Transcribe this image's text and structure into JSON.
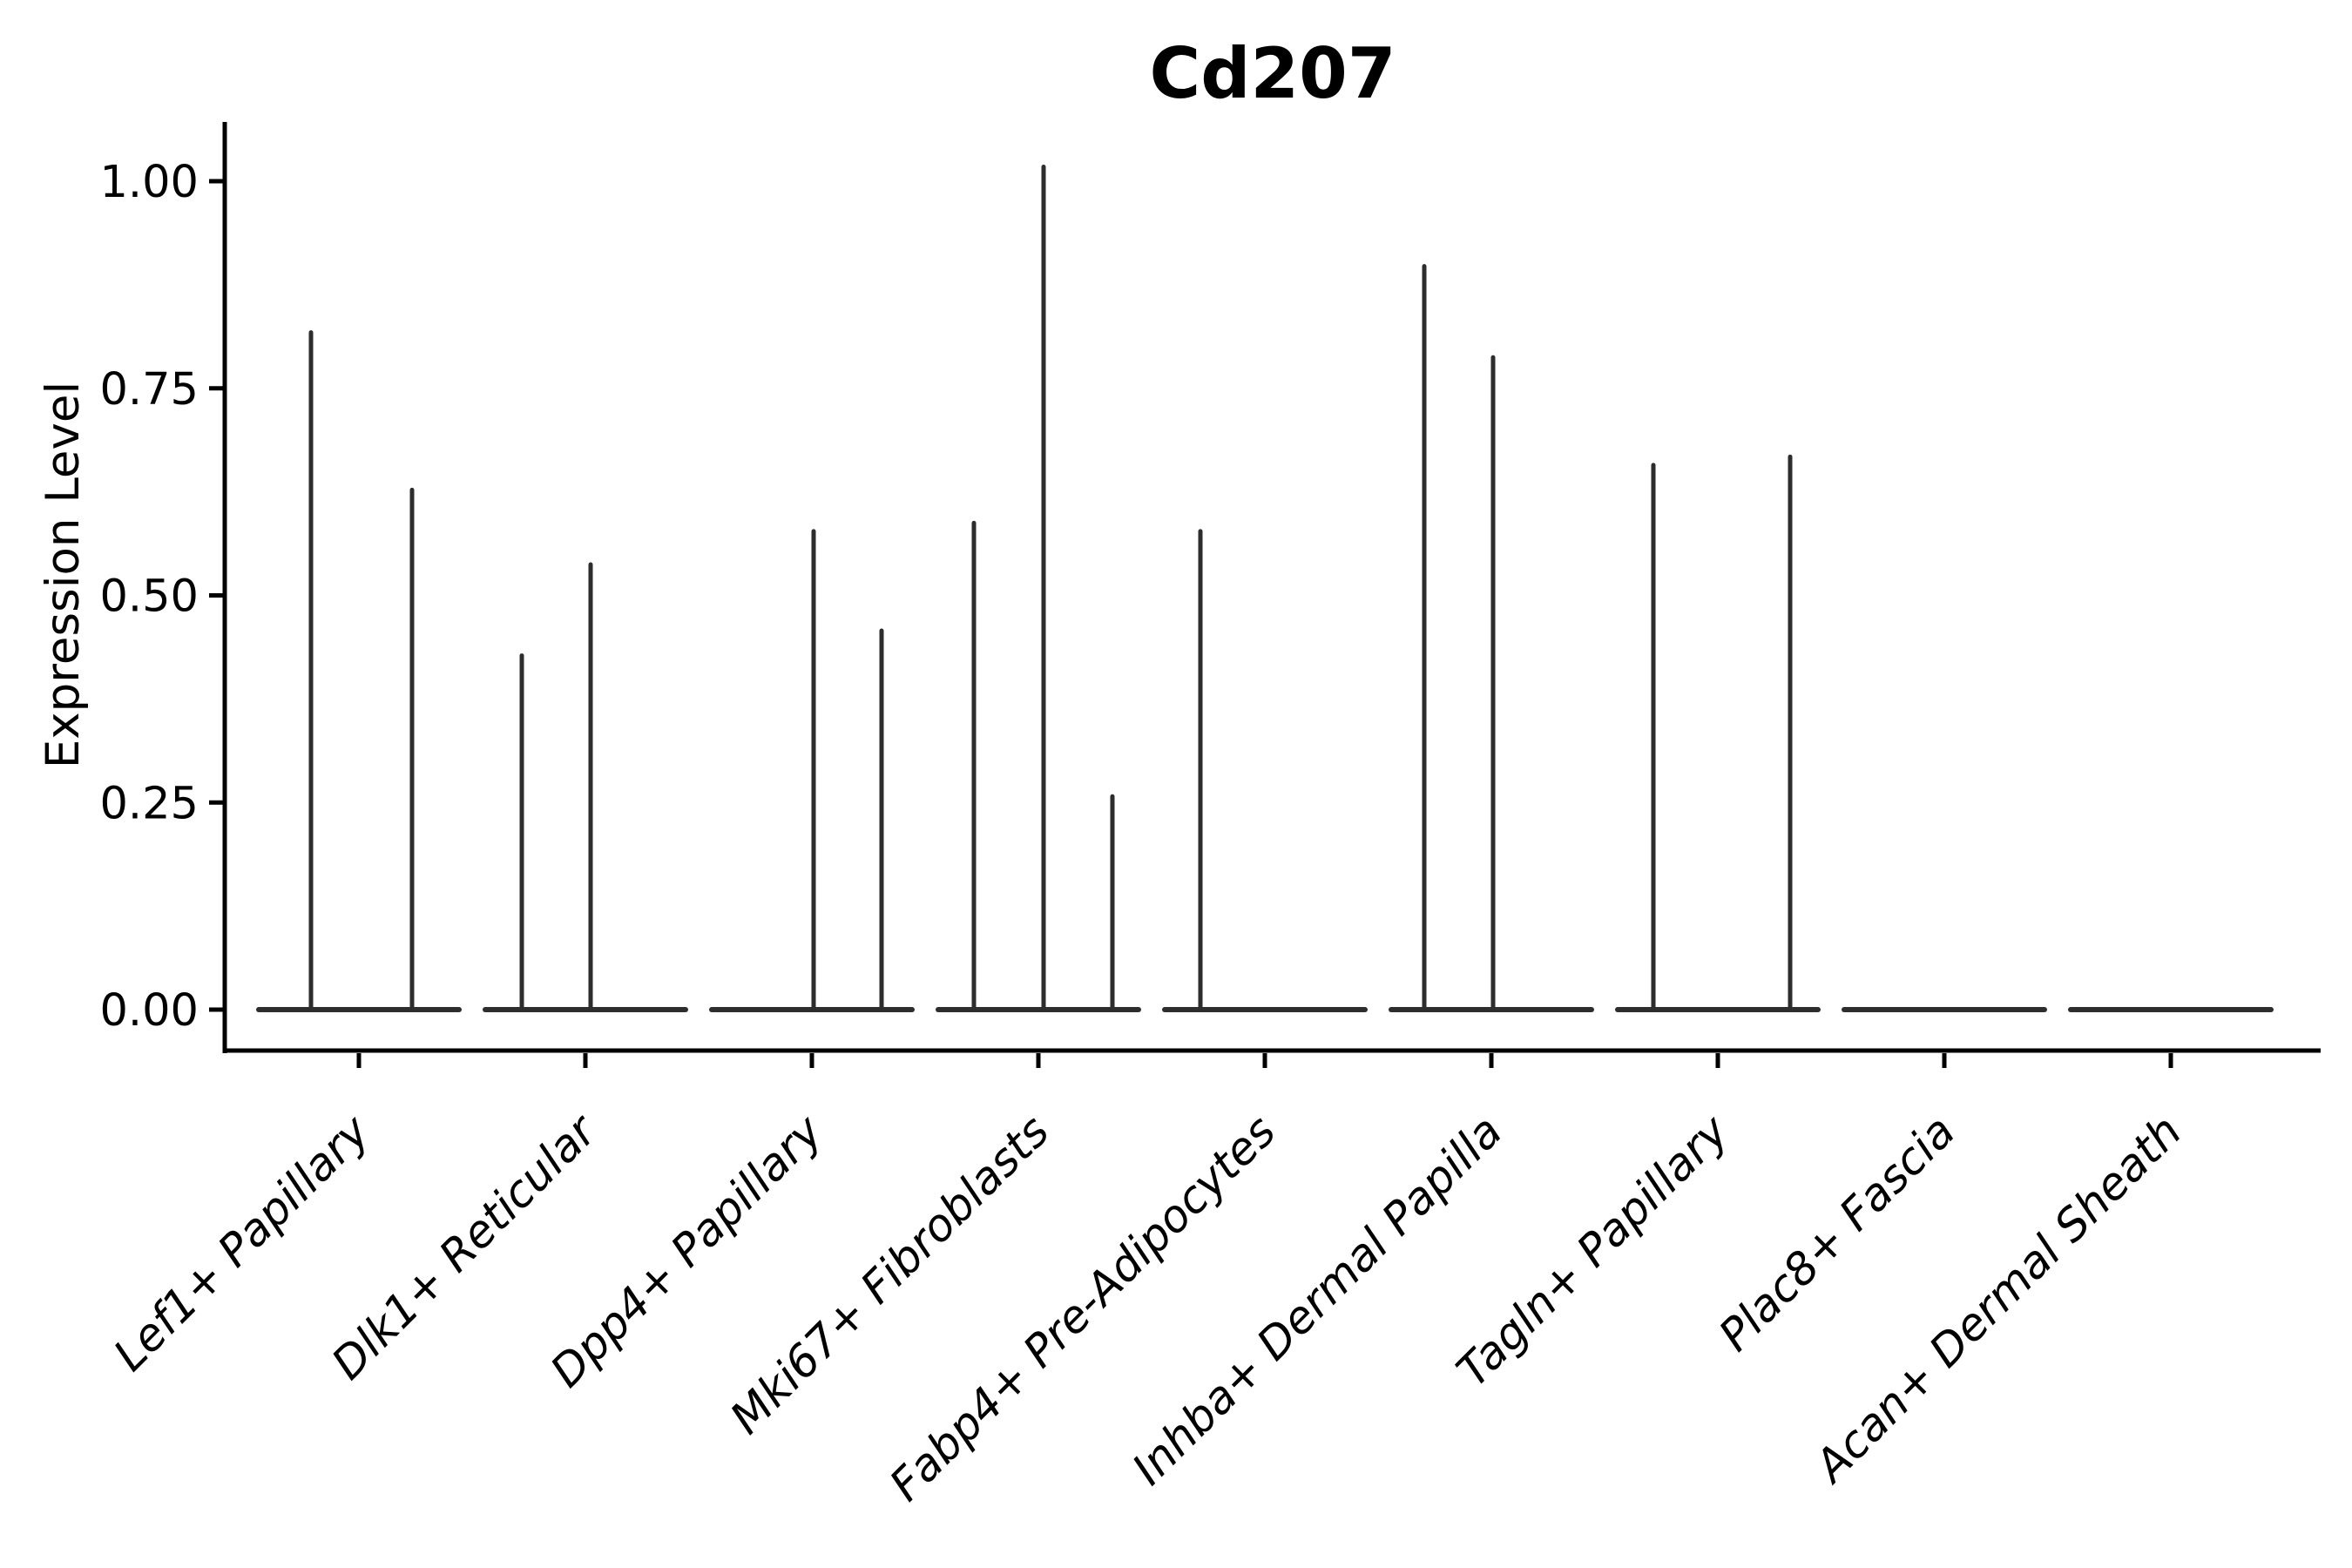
{
  "chart_data": {
    "type": "violin",
    "title": "Cd207",
    "ylabel": "Expression Level",
    "xlabel": "",
    "legend": "none",
    "grid": "off",
    "ylim": [
      0,
      1.02
    ],
    "y_tick_labels": [
      "1.00",
      "0.75",
      "0.50",
      "0.25",
      "0.00"
    ],
    "y_tick_values": [
      1.0,
      0.75,
      0.5,
      0.25,
      0.0
    ],
    "categories": [
      "Lef1+ Papillary",
      "Dlk1+ Reticular",
      "Dpp4+ Papillary",
      "Mki67+ Fibroblasts",
      "Fabp4+ Pre-Adipocytes",
      "Inhba+ Dermal Papilla",
      "Tagln+ Papillary",
      "Plac8+ Fascia",
      "Acan+ Dermal Sheath"
    ],
    "groups": [
      {
        "category": "Lef1+ Papillary",
        "spikes": [
          {
            "offset": -55,
            "value": 0.82
          },
          {
            "offset": 61,
            "value": 0.63
          }
        ]
      },
      {
        "category": "Dlk1+ Reticular",
        "spikes": [
          {
            "offset": -73,
            "value": 0.43
          },
          {
            "offset": 6,
            "value": 0.54
          }
        ]
      },
      {
        "category": "Dpp4+ Papillary",
        "spikes": [
          {
            "offset": 2,
            "value": 0.58
          },
          {
            "offset": 80,
            "value": 0.46
          }
        ]
      },
      {
        "category": "Mki67+ Fibroblasts",
        "spikes": [
          {
            "offset": -74,
            "value": 0.59
          },
          {
            "offset": 6,
            "value": 1.02
          },
          {
            "offset": 85,
            "value": 0.26
          }
        ]
      },
      {
        "category": "Fabp4+ Pre-Adipocytes",
        "spikes": [
          {
            "offset": -74,
            "value": 0.58
          }
        ]
      },
      {
        "category": "Inhba+ Dermal Papilla",
        "spikes": [
          {
            "offset": -77,
            "value": 0.9
          },
          {
            "offset": 2,
            "value": 0.79
          }
        ]
      },
      {
        "category": "Tagln+ Papillary",
        "spikes": [
          {
            "offset": -74,
            "value": 0.66
          },
          {
            "offset": 83,
            "value": 0.67
          }
        ]
      },
      {
        "category": "Plac8+ Fascia",
        "spikes": []
      },
      {
        "category": "Acan+ Dermal Sheath",
        "spikes": []
      }
    ],
    "colors": {
      "violin_stroke": "#2d2d2d",
      "axis": "#000000",
      "text": "#000000",
      "background": "#ffffff"
    }
  }
}
